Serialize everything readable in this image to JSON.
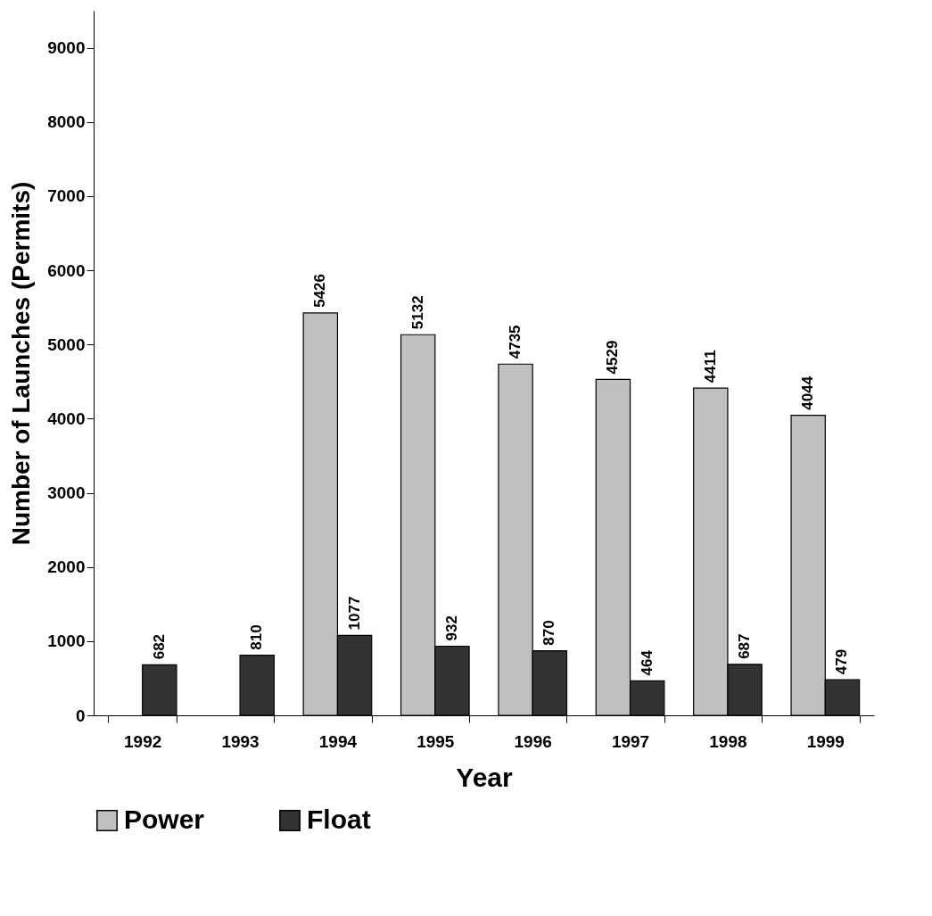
{
  "chart_data": {
    "type": "bar",
    "xlabel": "Year",
    "ylabel": "Number of Launches (Permits)",
    "categories": [
      "1992",
      "1993",
      "1994",
      "1995",
      "1996",
      "1997",
      "1998",
      "1999"
    ],
    "series": [
      {
        "name": "Power",
        "color": "#c0c0c0",
        "values": [
          null,
          null,
          5426,
          5132,
          4735,
          4529,
          4411,
          4044
        ]
      },
      {
        "name": "Float",
        "color": "#333333",
        "values": [
          682,
          810,
          1077,
          932,
          870,
          464,
          687,
          479
        ]
      }
    ],
    "ylim": [
      0,
      9500
    ],
    "yticks": [
      0,
      1000,
      2000,
      3000,
      4000,
      5000,
      6000,
      7000,
      8000,
      9000
    ],
    "grid": false,
    "legend": "bottom",
    "data_labels": true
  }
}
